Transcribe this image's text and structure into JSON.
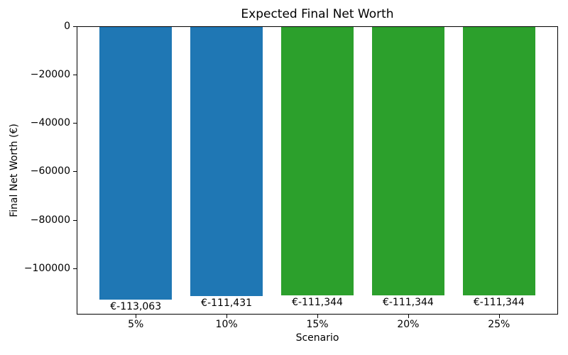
{
  "chart_data": {
    "type": "bar",
    "title": "Expected Final Net Worth",
    "xlabel": "Scenario",
    "ylabel": "Final Net Worth (€)",
    "categories": [
      "5%",
      "10%",
      "15%",
      "20%",
      "25%"
    ],
    "values": [
      -113063,
      -111431,
      -111344,
      -111344,
      -111344
    ],
    "bar_labels": [
      "€-113,063",
      "€-111,431",
      "€-111,344",
      "€-111,344",
      "€-111,344"
    ],
    "bar_colors": [
      "#1f77b4",
      "#1f77b4",
      "#2ca02c",
      "#2ca02c",
      "#2ca02c"
    ],
    "bar_width_fraction": 0.8,
    "xlim": [
      -0.65,
      4.65
    ],
    "ylim": [
      -119200,
      0
    ],
    "yticks": [
      0,
      -20000,
      -40000,
      -60000,
      -80000,
      -100000
    ],
    "ytick_labels": [
      "0",
      "−20000",
      "−40000",
      "−60000",
      "−80000",
      "−100000"
    ],
    "grid": false,
    "legend": "none",
    "colors": {
      "blue_series": "#1f77b4",
      "green_series": "#2ca02c",
      "axis": "#000000",
      "background": "#ffffff"
    }
  }
}
